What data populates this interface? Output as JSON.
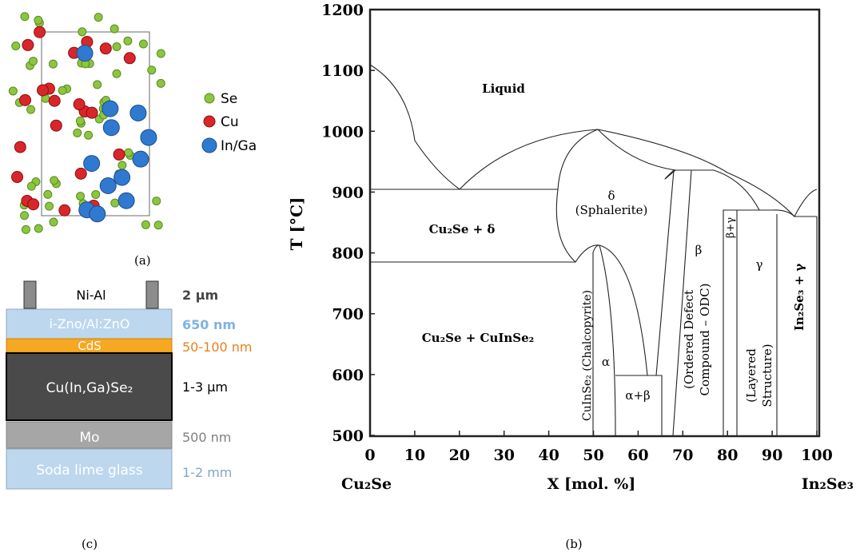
{
  "panel_labels": {
    "a": "(a)",
    "b": "(b)",
    "c": "(c)"
  },
  "crystal": {
    "legend": [
      "Se",
      "Cu",
      "In/Ga"
    ]
  },
  "device": {
    "contact": "Ni-Al",
    "contact_thickness": "2 µm",
    "layers": [
      {
        "name": "i-Zno/Al:ZnO",
        "thickness": "650 nm"
      },
      {
        "name": "CdS",
        "thickness": "50-100 nm"
      },
      {
        "name": "Cu(In,Ga)Se₂",
        "thickness": "1-3 µm"
      },
      {
        "name": "Mo",
        "thickness": "500 nm"
      },
      {
        "name": "Soda lime glass",
        "thickness": "1-2 mm"
      }
    ]
  },
  "phase_diagram": {
    "y_label": "T [°C]",
    "x_label": "X [mol. %]",
    "left_end": "Cu₂Se",
    "right_end": "In₂Se₃",
    "xlim": [
      0,
      100
    ],
    "ylim": [
      500,
      1200
    ],
    "xticks": [
      0,
      10,
      20,
      30,
      40,
      50,
      60,
      70,
      80,
      90,
      100
    ],
    "yticks": [
      500,
      600,
      700,
      800,
      900,
      1000,
      1100,
      1200
    ],
    "regions": [
      "Liquid",
      "δ",
      "(Sphalerite)",
      "Cu₂Se + δ",
      "Cu₂Se + CuInSe₂",
      "CuInSe₂ (Chalcopyrite)",
      "α",
      "α+β",
      "β",
      "(Ordered Defect",
      "Compound – ODC)",
      "β+γ",
      "γ",
      "(Layered",
      "Structure)",
      "In₂Se₃ + γ"
    ]
  }
}
